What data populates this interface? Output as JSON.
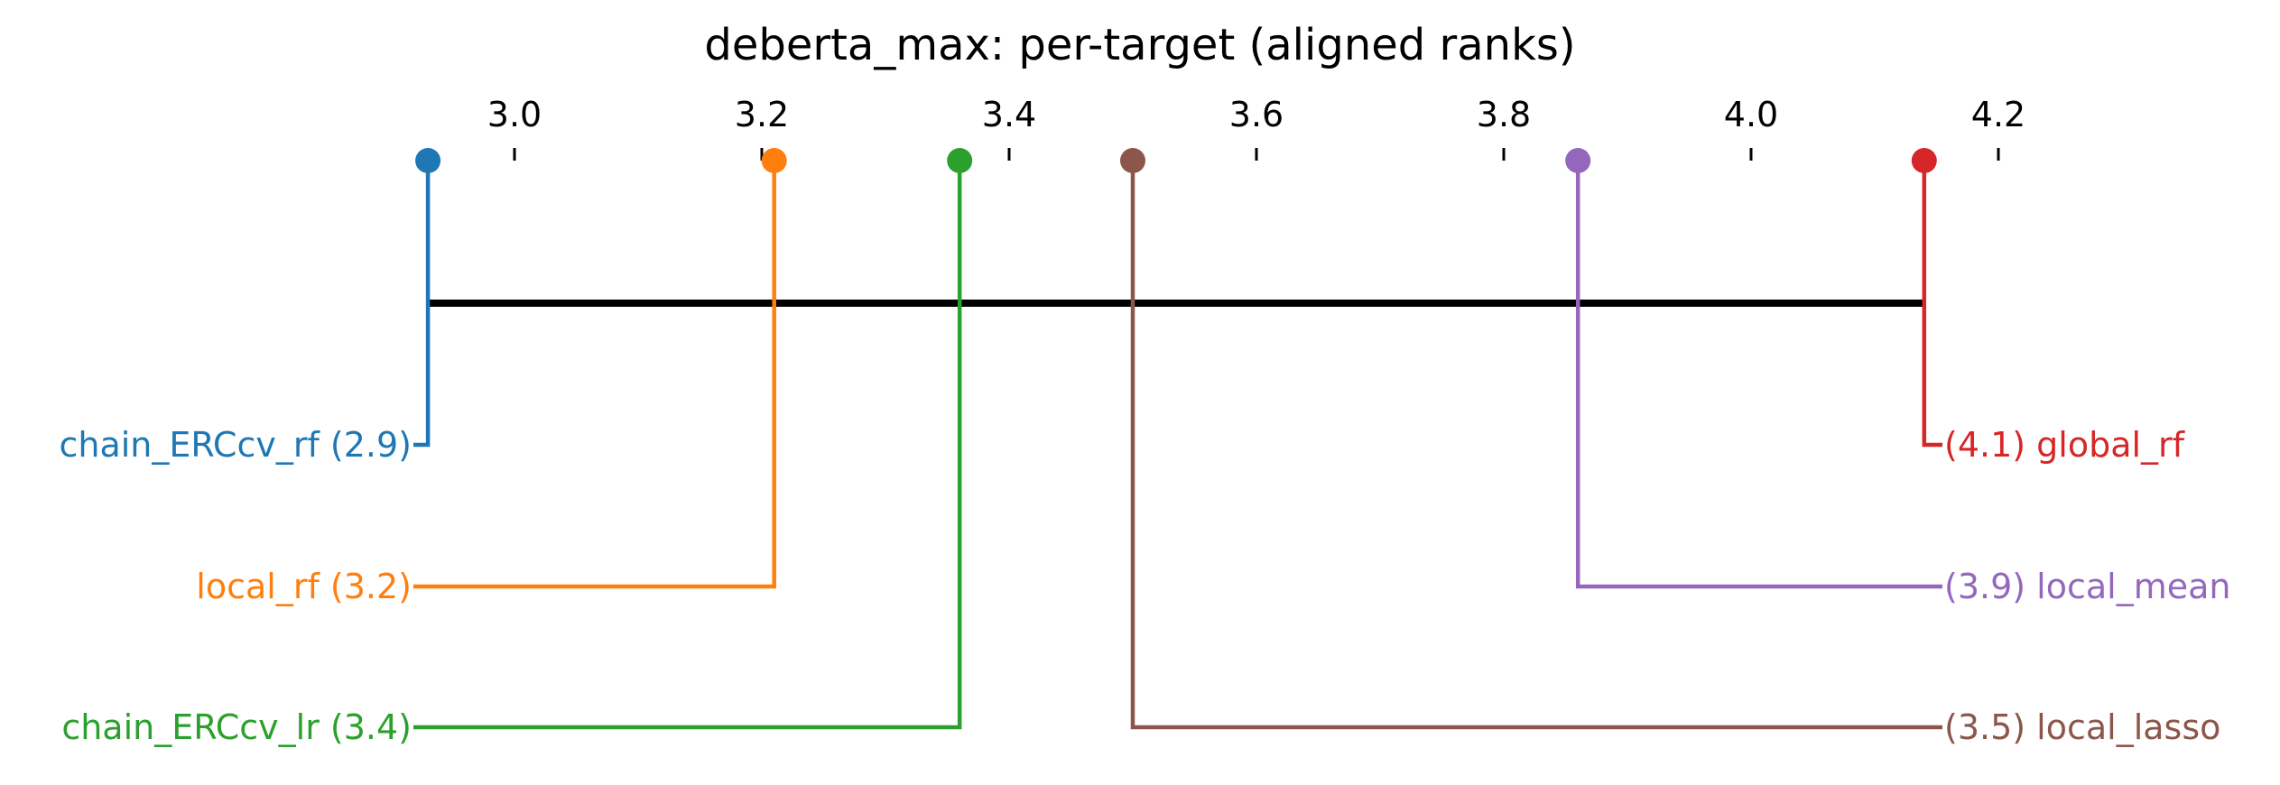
{
  "chart_data": {
    "type": "critical-difference",
    "title": "deberta_max: per-target (aligned ranks)",
    "xlim": [
      2.93,
      4.14
    ],
    "ticks": [
      "3.0",
      "3.2",
      "3.4",
      "3.6",
      "3.8",
      "4.0",
      "4.2"
    ],
    "tick_values": [
      3.0,
      3.2,
      3.4,
      3.6,
      3.8,
      4.0,
      4.2
    ],
    "cliques": [
      {
        "from": 2.93,
        "to": 4.14
      }
    ],
    "methods": [
      {
        "name": "chain_ERCcv_rf",
        "rank": 2.93,
        "rank_label": "2.9",
        "side": "left",
        "row": 0,
        "color": "#1f77b4",
        "label": "chain_ERCcv_rf (2.9)"
      },
      {
        "name": "local_rf",
        "rank": 3.21,
        "rank_label": "3.2",
        "side": "left",
        "row": 1,
        "color": "#ff7f0e",
        "label": "local_rf (3.2)"
      },
      {
        "name": "chain_ERCcv_lr",
        "rank": 3.36,
        "rank_label": "3.4",
        "side": "left",
        "row": 2,
        "color": "#2ca02c",
        "label": "chain_ERCcv_lr (3.4)"
      },
      {
        "name": "local_lasso",
        "rank": 3.5,
        "rank_label": "3.5",
        "side": "right",
        "row": 2,
        "color": "#8c564b",
        "label": "(3.5) local_lasso"
      },
      {
        "name": "local_mean",
        "rank": 3.86,
        "rank_label": "3.9",
        "side": "right",
        "row": 1,
        "color": "#9467bd",
        "label": "(3.9) local_mean"
      },
      {
        "name": "global_rf",
        "rank": 4.14,
        "rank_label": "4.1",
        "side": "right",
        "row": 0,
        "color": "#d62728",
        "label": "(4.1) global_rf"
      }
    ]
  }
}
